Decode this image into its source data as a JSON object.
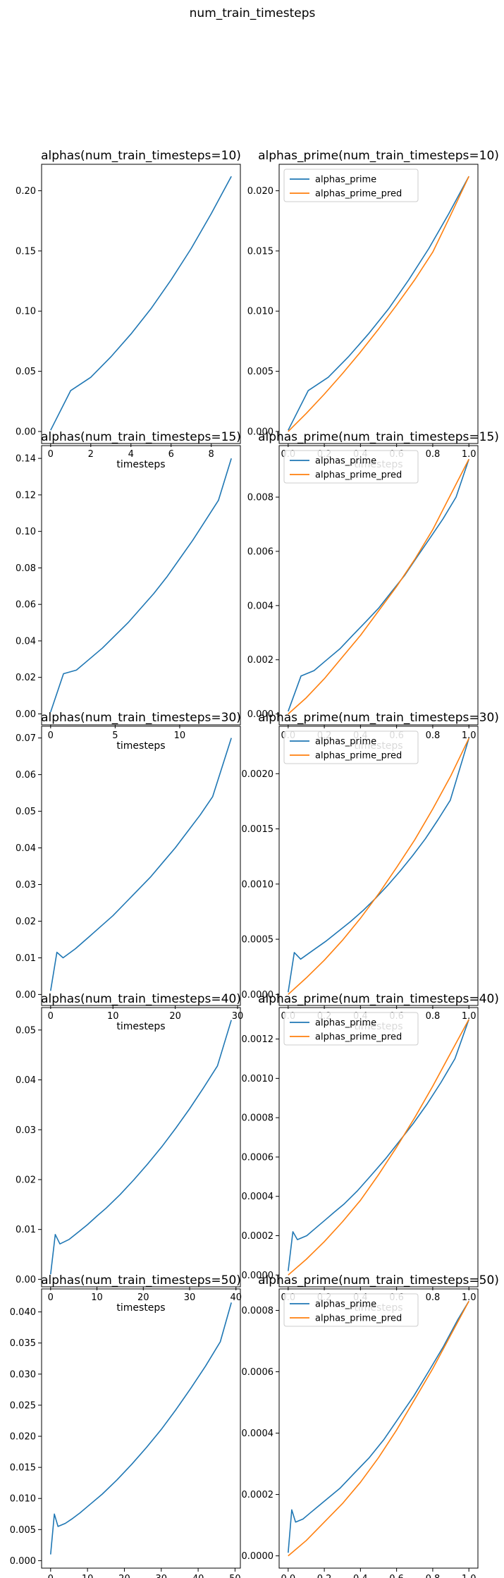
{
  "figure": {
    "suptitle": "num_train_timesteps"
  },
  "colors": {
    "alphas_prime": "#1f77b4",
    "alphas_prime_pred": "#ff7f0e"
  },
  "chart_data": [
    {
      "type": "line",
      "title": "alphas(num_train_timesteps=10)",
      "xlabel": "timesteps",
      "ylabel": "",
      "xlim": [
        -0.45,
        9.45
      ],
      "ylim": [
        -0.01,
        0.222
      ],
      "xticks": [
        0,
        2,
        4,
        6,
        8
      ],
      "xtick_labels": [
        "0",
        "2",
        "4",
        "6",
        "8"
      ],
      "yticks": [
        0,
        0.05,
        0.1,
        0.15,
        0.2
      ],
      "ytick_labels": [
        "0.00",
        "0.05",
        "0.10",
        "0.15",
        "0.20"
      ],
      "series": [
        {
          "name": "",
          "color": "#1f77b4",
          "x": [
            0,
            1,
            2,
            3,
            4,
            5,
            6,
            7,
            8,
            9
          ],
          "y": [
            0.001,
            0.034,
            0.045,
            0.062,
            0.081,
            0.102,
            0.126,
            0.152,
            0.181,
            0.212
          ]
        }
      ],
      "legend": null
    },
    {
      "type": "line",
      "title": "alphas_prime(num_train_timesteps=10)",
      "xlabel": "timesteps",
      "ylabel": "",
      "xlim": [
        -0.05,
        1.05
      ],
      "ylim": [
        -0.001,
        0.0222
      ],
      "xticks": [
        0,
        0.2,
        0.4,
        0.6,
        0.8,
        1.0
      ],
      "xtick_labels": [
        "0.0",
        "0.2",
        "0.4",
        "0.6",
        "0.8",
        "1.0"
      ],
      "yticks": [
        0,
        0.005,
        0.01,
        0.015,
        0.02
      ],
      "ytick_labels": [
        "0.000",
        "0.005",
        "0.010",
        "0.015",
        "0.020"
      ],
      "series": [
        {
          "name": "alphas_prime",
          "color": "#1f77b4",
          "x": [
            0,
            0.111,
            0.222,
            0.333,
            0.444,
            0.556,
            0.667,
            0.778,
            0.889,
            1.0
          ],
          "y": [
            0.0001,
            0.0034,
            0.0045,
            0.0062,
            0.0081,
            0.0102,
            0.0126,
            0.0152,
            0.0181,
            0.0212
          ]
        },
        {
          "name": "alphas_prime_pred",
          "color": "#ff7f0e",
          "x": [
            0,
            0.1,
            0.2,
            0.3,
            0.4,
            0.5,
            0.6,
            0.7,
            0.8,
            0.9,
            1.0
          ],
          "y": [
            0.0,
            0.0015,
            0.0031,
            0.0048,
            0.0066,
            0.0085,
            0.0105,
            0.0126,
            0.0149,
            0.018,
            0.0212
          ]
        }
      ],
      "legend": "upper-left"
    },
    {
      "type": "line",
      "title": "alphas(num_train_timesteps=15)",
      "xlabel": "timesteps",
      "ylabel": "",
      "xlim": [
        -0.7,
        14.7
      ],
      "ylim": [
        -0.006,
        0.147
      ],
      "xticks": [
        0,
        5,
        10
      ],
      "xtick_labels": [
        "0",
        "5",
        "10"
      ],
      "yticks": [
        0,
        0.02,
        0.04,
        0.06,
        0.08,
        0.1,
        0.12,
        0.14
      ],
      "ytick_labels": [
        "0.00",
        "0.02",
        "0.04",
        "0.06",
        "0.08",
        "0.10",
        "0.12",
        "0.14"
      ],
      "series": [
        {
          "name": "",
          "color": "#1f77b4",
          "x": [
            0,
            1,
            2,
            3,
            4,
            5,
            6,
            7,
            8,
            9,
            10,
            11,
            12,
            13,
            14
          ],
          "y": [
            0.001,
            0.022,
            0.024,
            0.03,
            0.036,
            0.043,
            0.05,
            0.058,
            0.066,
            0.075,
            0.085,
            0.095,
            0.106,
            0.117,
            0.14
          ]
        }
      ],
      "legend": null
    },
    {
      "type": "line",
      "title": "alphas_prime(num_train_timesteps=15)",
      "xlabel": "timesteps",
      "ylabel": "",
      "xlim": [
        -0.05,
        1.05
      ],
      "ylim": [
        -0.0004,
        0.0099
      ],
      "xticks": [
        0,
        0.2,
        0.4,
        0.6,
        0.8,
        1.0
      ],
      "xtick_labels": [
        "0.0",
        "0.2",
        "0.4",
        "0.6",
        "0.8",
        "1.0"
      ],
      "yticks": [
        0,
        0.002,
        0.004,
        0.006,
        0.008
      ],
      "ytick_labels": [
        "0.000",
        "0.002",
        "0.004",
        "0.006",
        "0.008"
      ],
      "series": [
        {
          "name": "alphas_prime",
          "color": "#1f77b4",
          "x": [
            0,
            0.071,
            0.143,
            0.214,
            0.286,
            0.357,
            0.429,
            0.5,
            0.571,
            0.643,
            0.714,
            0.786,
            0.857,
            0.929,
            1.0
          ],
          "y": [
            0.0001,
            0.0014,
            0.0016,
            0.002,
            0.0024,
            0.0029,
            0.0034,
            0.0039,
            0.0045,
            0.0051,
            0.0058,
            0.0065,
            0.0072,
            0.008,
            0.0094
          ]
        },
        {
          "name": "alphas_prime_pred",
          "color": "#ff7f0e",
          "x": [
            0,
            0.1,
            0.2,
            0.3,
            0.4,
            0.5,
            0.6,
            0.7,
            0.8,
            0.9,
            1.0
          ],
          "y": [
            0.0,
            0.0006,
            0.0013,
            0.0021,
            0.0029,
            0.0038,
            0.0047,
            0.0057,
            0.0068,
            0.0081,
            0.0094
          ]
        }
      ],
      "legend": "upper-left"
    },
    {
      "type": "line",
      "title": "alphas(num_train_timesteps=30)",
      "xlabel": "timesteps",
      "ylabel": "",
      "xlim": [
        -1.45,
        30.45
      ],
      "ylim": [
        -0.003,
        0.0732
      ],
      "xticks": [
        0,
        10,
        20,
        30
      ],
      "xtick_labels": [
        "0",
        "10",
        "20",
        "30"
      ],
      "yticks": [
        0,
        0.01,
        0.02,
        0.03,
        0.04,
        0.05,
        0.06,
        0.07
      ],
      "ytick_labels": [
        "0.00",
        "0.01",
        "0.02",
        "0.03",
        "0.04",
        "0.05",
        "0.06",
        "0.07"
      ],
      "series": [
        {
          "name": "",
          "color": "#1f77b4",
          "x": [
            0,
            1,
            2,
            4,
            6,
            8,
            10,
            12,
            14,
            16,
            18,
            20,
            22,
            24,
            26,
            29
          ],
          "y": [
            0.001,
            0.0115,
            0.01,
            0.0125,
            0.0155,
            0.0185,
            0.0215,
            0.025,
            0.0285,
            0.032,
            0.036,
            0.04,
            0.0445,
            0.049,
            0.054,
            0.07
          ]
        }
      ],
      "legend": null
    },
    {
      "type": "line",
      "title": "alphas_prime(num_train_timesteps=30)",
      "xlabel": "timesteps",
      "ylabel": "",
      "xlim": [
        -0.05,
        1.05
      ],
      "ylim": [
        -0.0001,
        0.00243
      ],
      "xticks": [
        0,
        0.2,
        0.4,
        0.6,
        0.8,
        1.0
      ],
      "xtick_labels": [
        "0.0",
        "0.2",
        "0.4",
        "0.6",
        "0.8",
        "1.0"
      ],
      "yticks": [
        0,
        0.0005,
        0.001,
        0.0015,
        0.002
      ],
      "ytick_labels": [
        "0.0000",
        "0.0005",
        "0.0010",
        "0.0015",
        "0.0020"
      ],
      "series": [
        {
          "name": "alphas_prime",
          "color": "#1f77b4",
          "x": [
            0,
            0.034,
            0.069,
            0.138,
            0.207,
            0.276,
            0.345,
            0.414,
            0.483,
            0.552,
            0.621,
            0.69,
            0.759,
            0.828,
            0.897,
            1.0
          ],
          "y": [
            2e-05,
            0.00038,
            0.00032,
            0.0004,
            0.00048,
            0.00057,
            0.00066,
            0.00076,
            0.00087,
            0.00099,
            0.00112,
            0.00126,
            0.00141,
            0.00158,
            0.00176,
            0.00232
          ]
        },
        {
          "name": "alphas_prime_pred",
          "color": "#ff7f0e",
          "x": [
            0,
            0.1,
            0.2,
            0.3,
            0.4,
            0.5,
            0.6,
            0.7,
            0.8,
            0.9,
            1.0
          ],
          "y": [
            0.0,
            0.00015,
            0.00031,
            0.00049,
            0.00069,
            0.00091,
            0.00115,
            0.0014,
            0.00168,
            0.00198,
            0.00232
          ]
        }
      ],
      "legend": "upper-left"
    },
    {
      "type": "line",
      "title": "alphas(num_train_timesteps=40)",
      "xlabel": "timesteps",
      "ylabel": "",
      "xlim": [
        -1.95,
        40.95
      ],
      "ylim": [
        -0.0015,
        0.0545
      ],
      "xticks": [
        0,
        10,
        20,
        30,
        40
      ],
      "xtick_labels": [
        "0",
        "10",
        "20",
        "30",
        "40"
      ],
      "yticks": [
        0,
        0.01,
        0.02,
        0.03,
        0.04,
        0.05
      ],
      "ytick_labels": [
        "0.00",
        "0.01",
        "0.02",
        "0.03",
        "0.04",
        "0.05"
      ],
      "series": [
        {
          "name": "",
          "color": "#1f77b4",
          "x": [
            0,
            1,
            2,
            4,
            6,
            8,
            10,
            12,
            15,
            18,
            21,
            24,
            27,
            30,
            33,
            36,
            39
          ],
          "y": [
            0.001,
            0.009,
            0.0071,
            0.008,
            0.0095,
            0.011,
            0.0127,
            0.0143,
            0.017,
            0.02,
            0.0232,
            0.0266,
            0.0303,
            0.0342,
            0.0384,
            0.0428,
            0.052
          ]
        }
      ],
      "legend": null
    },
    {
      "type": "line",
      "title": "alphas_prime(num_train_timesteps=40)",
      "xlabel": "timesteps",
      "ylabel": "",
      "xlim": [
        -0.05,
        1.05
      ],
      "ylim": [
        -6e-05,
        0.00136
      ],
      "xticks": [
        0,
        0.2,
        0.4,
        0.6,
        0.8,
        1.0
      ],
      "xtick_labels": [
        "0.0",
        "0.2",
        "0.4",
        "0.6",
        "0.8",
        "1.0"
      ],
      "yticks": [
        0,
        0.0002,
        0.0004,
        0.0006,
        0.0008,
        0.001,
        0.0012
      ],
      "ytick_labels": [
        "0.0000",
        "0.0002",
        "0.0004",
        "0.0006",
        "0.0008",
        "0.0010",
        "0.0012"
      ],
      "series": [
        {
          "name": "alphas_prime",
          "color": "#1f77b4",
          "x": [
            0,
            0.026,
            0.051,
            0.103,
            0.154,
            0.205,
            0.256,
            0.308,
            0.385,
            0.462,
            0.538,
            0.615,
            0.692,
            0.769,
            0.846,
            0.923,
            1.0
          ],
          "y": [
            2e-05,
            0.00022,
            0.00018,
            0.0002,
            0.00024,
            0.00028,
            0.00032,
            0.00036,
            0.00043,
            0.00051,
            0.00059,
            0.00068,
            0.00077,
            0.00087,
            0.00098,
            0.0011,
            0.0013
          ]
        },
        {
          "name": "alphas_prime_pred",
          "color": "#ff7f0e",
          "x": [
            0,
            0.1,
            0.2,
            0.3,
            0.4,
            0.5,
            0.6,
            0.7,
            0.8,
            0.9,
            1.0
          ],
          "y": [
            0.0,
            8e-05,
            0.00017,
            0.00027,
            0.00038,
            0.00051,
            0.00065,
            0.0008,
            0.00096,
            0.00113,
            0.0013
          ]
        }
      ],
      "legend": "upper-left"
    },
    {
      "type": "line",
      "title": "alphas(num_train_timesteps=50)",
      "xlabel": "timesteps",
      "ylabel": "",
      "xlim": [
        -2.45,
        51.45
      ],
      "ylim": [
        -0.0012,
        0.0437
      ],
      "xticks": [
        0,
        10,
        20,
        30,
        40,
        50
      ],
      "xtick_labels": [
        "0",
        "10",
        "20",
        "30",
        "40",
        "50"
      ],
      "yticks": [
        0,
        0.005,
        0.01,
        0.015,
        0.02,
        0.025,
        0.03,
        0.035,
        0.04
      ],
      "ytick_labels": [
        "0.000",
        "0.005",
        "0.010",
        "0.015",
        "0.020",
        "0.025",
        "0.030",
        "0.035",
        "0.040"
      ],
      "series": [
        {
          "name": "",
          "color": "#1f77b4",
          "x": [
            0,
            1,
            2,
            4,
            6,
            8,
            10,
            14,
            18,
            22,
            26,
            30,
            34,
            38,
            42,
            46,
            49
          ],
          "y": [
            0.001,
            0.0075,
            0.0055,
            0.006,
            0.0068,
            0.0077,
            0.0087,
            0.0107,
            0.013,
            0.0155,
            0.0182,
            0.0211,
            0.0243,
            0.0277,
            0.0313,
            0.0352,
            0.0415
          ]
        }
      ],
      "legend": null
    },
    {
      "type": "line",
      "title": "alphas_prime(num_train_timesteps=50)",
      "xlabel": "timesteps",
      "ylabel": "",
      "xlim": [
        -0.05,
        1.05
      ],
      "ylim": [
        -4e-05,
        0.00087
      ],
      "xticks": [
        0,
        0.2,
        0.4,
        0.6,
        0.8,
        1.0
      ],
      "xtick_labels": [
        "0.0",
        "0.2",
        "0.4",
        "0.6",
        "0.8",
        "1.0"
      ],
      "yticks": [
        0,
        0.0002,
        0.0004,
        0.0006,
        0.0008
      ],
      "ytick_labels": [
        "0.0000",
        "0.0002",
        "0.0004",
        "0.0006",
        "0.0008"
      ],
      "series": [
        {
          "name": "alphas_prime",
          "color": "#1f77b4",
          "x": [
            0,
            0.02,
            0.041,
            0.082,
            0.122,
            0.163,
            0.204,
            0.286,
            0.367,
            0.449,
            0.531,
            0.612,
            0.694,
            0.776,
            0.857,
            0.939,
            1.0
          ],
          "y": [
            1e-05,
            0.00015,
            0.00011,
            0.00012,
            0.00014,
            0.00016,
            0.00018,
            0.00022,
            0.00027,
            0.00032,
            0.00038,
            0.00045,
            0.00052,
            0.0006,
            0.00068,
            0.00077,
            0.00083
          ]
        },
        {
          "name": "alphas_prime_pred",
          "color": "#ff7f0e",
          "x": [
            0,
            0.1,
            0.2,
            0.3,
            0.4,
            0.5,
            0.6,
            0.7,
            0.8,
            0.9,
            1.0
          ],
          "y": [
            0.0,
            5e-05,
            0.00011,
            0.00017,
            0.00024,
            0.00032,
            0.00041,
            0.00051,
            0.00061,
            0.00072,
            0.00083
          ]
        }
      ],
      "legend": "upper-left"
    }
  ]
}
